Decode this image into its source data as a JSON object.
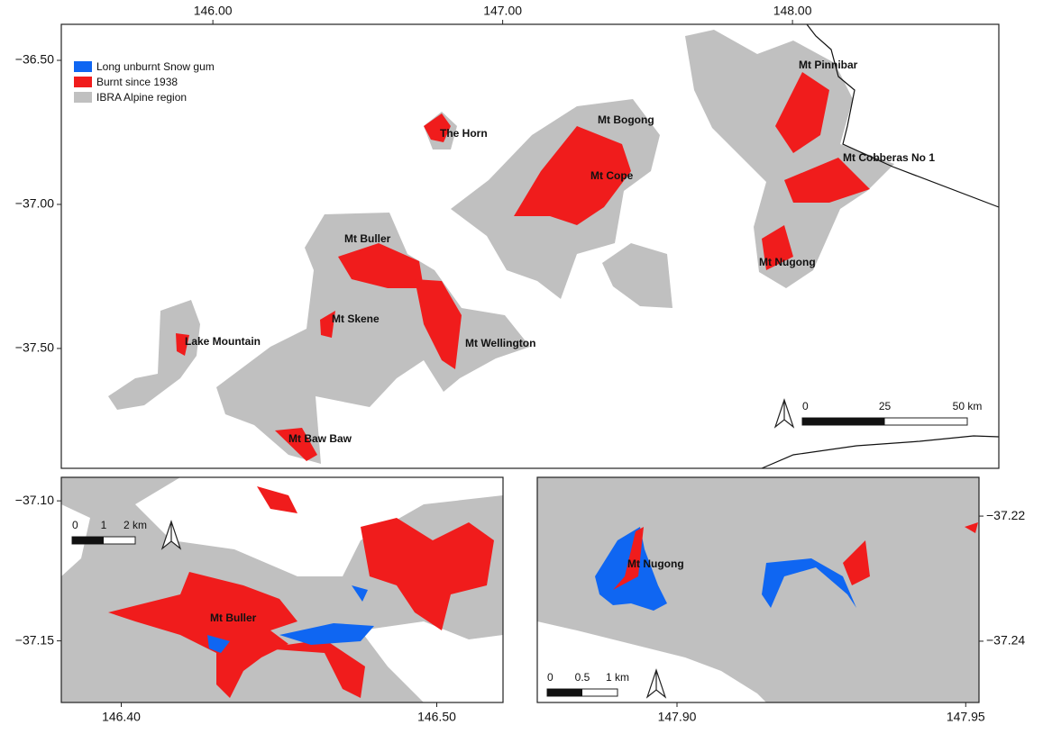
{
  "legend": [
    {
      "label": "Long unburnt Snow gum",
      "color": "#0f66f2"
    },
    {
      "label": "Burnt since 1938",
      "color": "#f01c1c"
    },
    {
      "label": "IBRA Alpine region",
      "color": "#c0c0c0"
    }
  ],
  "main_map": {
    "xlim": [
      145.477,
      148.712
    ],
    "ylim": [
      -36.375,
      -37.916
    ],
    "xticks": [
      {
        "value": 146,
        "label": "146.00"
      },
      {
        "value": 147,
        "label": "147.00"
      },
      {
        "value": 148,
        "label": "148.00"
      }
    ],
    "yticks": [
      {
        "value": -36.5,
        "label": "−36.50"
      },
      {
        "value": -37,
        "label": "−37.00"
      },
      {
        "value": -37.5,
        "label": "−37.50"
      }
    ],
    "places": [
      "Mt Pinnibar",
      "The Horn",
      "Mt Bogong",
      "Mt Cobberas No 1",
      "Mt Cope",
      "Mt Buller",
      "Mt Nugong",
      "Mt Skene",
      "Lake Mountain",
      "Mt Wellington",
      "Mt Baw Baw"
    ],
    "scale_bar": [
      "0",
      "25",
      "50 km"
    ]
  },
  "inset_buller": {
    "xlim": [
      146.381,
      146.521
    ],
    "ylim": [
      -37.0916,
      -37.172
    ],
    "xticks": [
      {
        "value": 146.4,
        "label": "146.40"
      },
      {
        "value": 146.5,
        "label": "146.50"
      }
    ],
    "yticks": [
      {
        "value": -37.1,
        "label": "−37.10"
      },
      {
        "value": -37.15,
        "label": "−37.15"
      }
    ],
    "places": [
      "Mt Buller"
    ],
    "scale_bar": [
      "0",
      "1",
      "2 km"
    ]
  },
  "inset_nugong": {
    "xlim": [
      147.8758,
      147.9523
    ],
    "ylim": [
      -37.2138,
      -37.2498
    ],
    "xticks": [
      {
        "value": 147.9,
        "label": "147.90"
      },
      {
        "value": 147.95,
        "label": "147.95"
      }
    ],
    "yticks": [
      {
        "value": -37.22,
        "label": "−37.22"
      },
      {
        "value": -37.24,
        "label": "−37.24"
      }
    ],
    "places": [
      "Mt Nugong"
    ],
    "scale_bar": [
      "0",
      "0.5",
      "1 km"
    ]
  }
}
